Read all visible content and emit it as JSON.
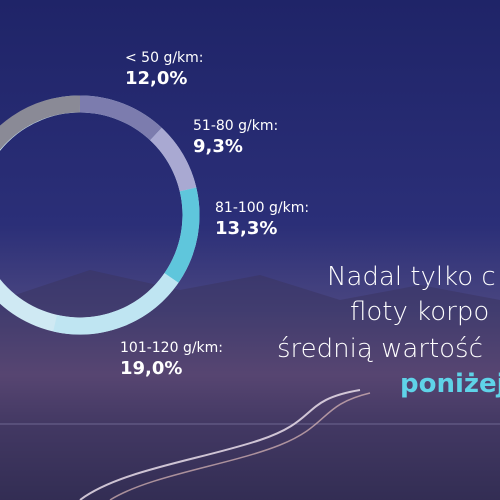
{
  "chart_data": {
    "type": "pie",
    "donut": true,
    "categories": [
      "< 50 g/km:",
      "51-80 g/km:",
      "81-100 g/km:",
      "101-120 g/km:"
    ],
    "values": [
      12.0,
      9.3,
      13.3,
      19.0
    ],
    "value_labels": [
      "12,0%",
      "9,3%",
      "13,3%",
      "19,0%"
    ],
    "colors": [
      "#7c7cae",
      "#a9a9d2",
      "#5fc6dc",
      "#bfe5f2"
    ]
  },
  "headline": {
    "lines": [
      "Nadal tylko c",
      "floty korpo",
      "średnią wartość"
    ],
    "highlight": "poniżej"
  }
}
